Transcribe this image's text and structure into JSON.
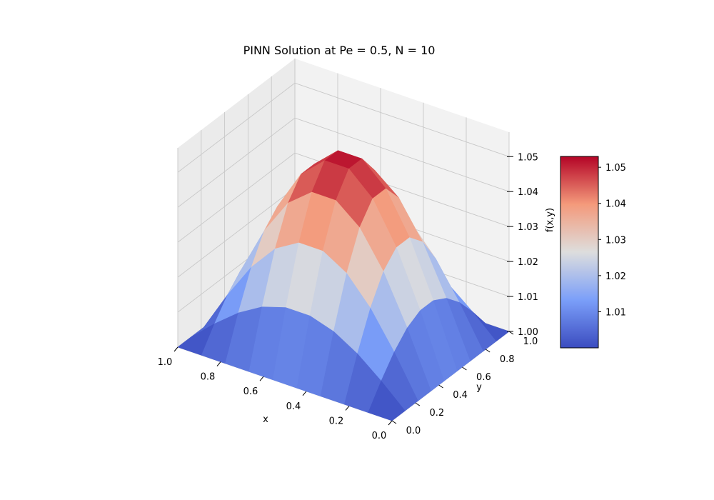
{
  "chart_data": {
    "type": "surface3d",
    "title": "PINN Solution at Pe = 0.5, N = 10",
    "xlabel": "x",
    "ylabel": "y",
    "zlabel": "f(x,y)",
    "x": [
      0.0,
      0.111,
      0.222,
      0.333,
      0.444,
      0.556,
      0.667,
      0.778,
      0.889,
      1.0
    ],
    "y": [
      0.0,
      0.111,
      0.222,
      0.333,
      0.444,
      0.556,
      0.667,
      0.778,
      0.889,
      1.0
    ],
    "z_model": "f(x,y) = 1 + 0.053 * sin(pi*x) * sin(pi*y) (values read from the surface)",
    "z_peak": 1.053,
    "z_base": 1.0,
    "xlim": [
      0.0,
      1.0
    ],
    "ylim": [
      0.0,
      1.0
    ],
    "zlim": [
      1.0,
      1.053
    ],
    "x_ticks": [
      "0.0",
      "0.2",
      "0.4",
      "0.6",
      "0.8",
      "1.0"
    ],
    "y_ticks": [
      "0.0",
      "0.2",
      "0.4",
      "0.6",
      "0.8",
      "1.0"
    ],
    "z_ticks": [
      "1.00",
      "1.01",
      "1.02",
      "1.03",
      "1.04",
      "1.05"
    ],
    "colormap": "coolwarm",
    "colorbar": {
      "range": [
        1.0,
        1.053
      ],
      "ticks": [
        "1.01",
        "1.02",
        "1.03",
        "1.04",
        "1.05"
      ],
      "placement": "right"
    },
    "grid": true
  },
  "colors": {
    "cmap_low": "#3b4cc0",
    "cmap_mid": "#dddddd",
    "cmap_high": "#b40426",
    "pane_left": "#ebebeb",
    "pane_back": "#f2f2f2",
    "pane_floor": "#f7f7f7",
    "grid": "#c8c8c8"
  }
}
